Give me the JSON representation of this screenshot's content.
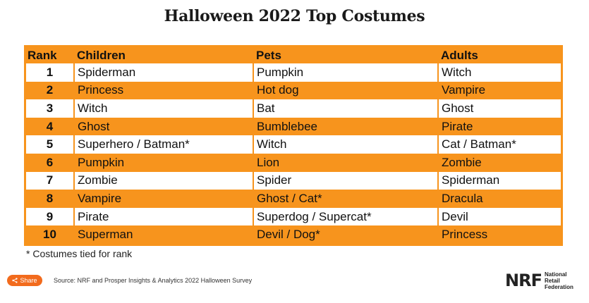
{
  "title": "Halloween 2022 Top Costumes",
  "table": {
    "headers": [
      "Rank",
      "Children",
      "Pets",
      "Adults"
    ],
    "rows": [
      [
        "1",
        "Spiderman",
        "Pumpkin",
        "Witch"
      ],
      [
        "2",
        "Princess",
        "Hot dog",
        "Vampire"
      ],
      [
        "3",
        "Witch",
        "Bat",
        "Ghost"
      ],
      [
        "4",
        "Ghost",
        "Bumblebee",
        "Pirate"
      ],
      [
        "5",
        "Superhero / Batman*",
        "Witch",
        "Cat / Batman*"
      ],
      [
        "6",
        "Pumpkin",
        "Lion",
        "Zombie"
      ],
      [
        "7",
        "Zombie",
        "Spider",
        "Spiderman"
      ],
      [
        "8",
        "Vampire",
        "Ghost / Cat*",
        "Dracula"
      ],
      [
        "9",
        "Pirate",
        "Superdog / Supercat*",
        "Devil"
      ],
      [
        "10",
        "Superman",
        "Devil / Dog*",
        "Princess"
      ]
    ]
  },
  "footnote": "* Costumes tied for rank",
  "share_label": "Share",
  "source": "Source: NRF and Prosper Insights & Analytics 2022 Halloween Survey",
  "logo": {
    "mark": "NRF",
    "line1": "National",
    "line2": "Retail",
    "line3": "Federation"
  },
  "colors": {
    "accent": "#f7941d",
    "share": "#f26b1d"
  }
}
